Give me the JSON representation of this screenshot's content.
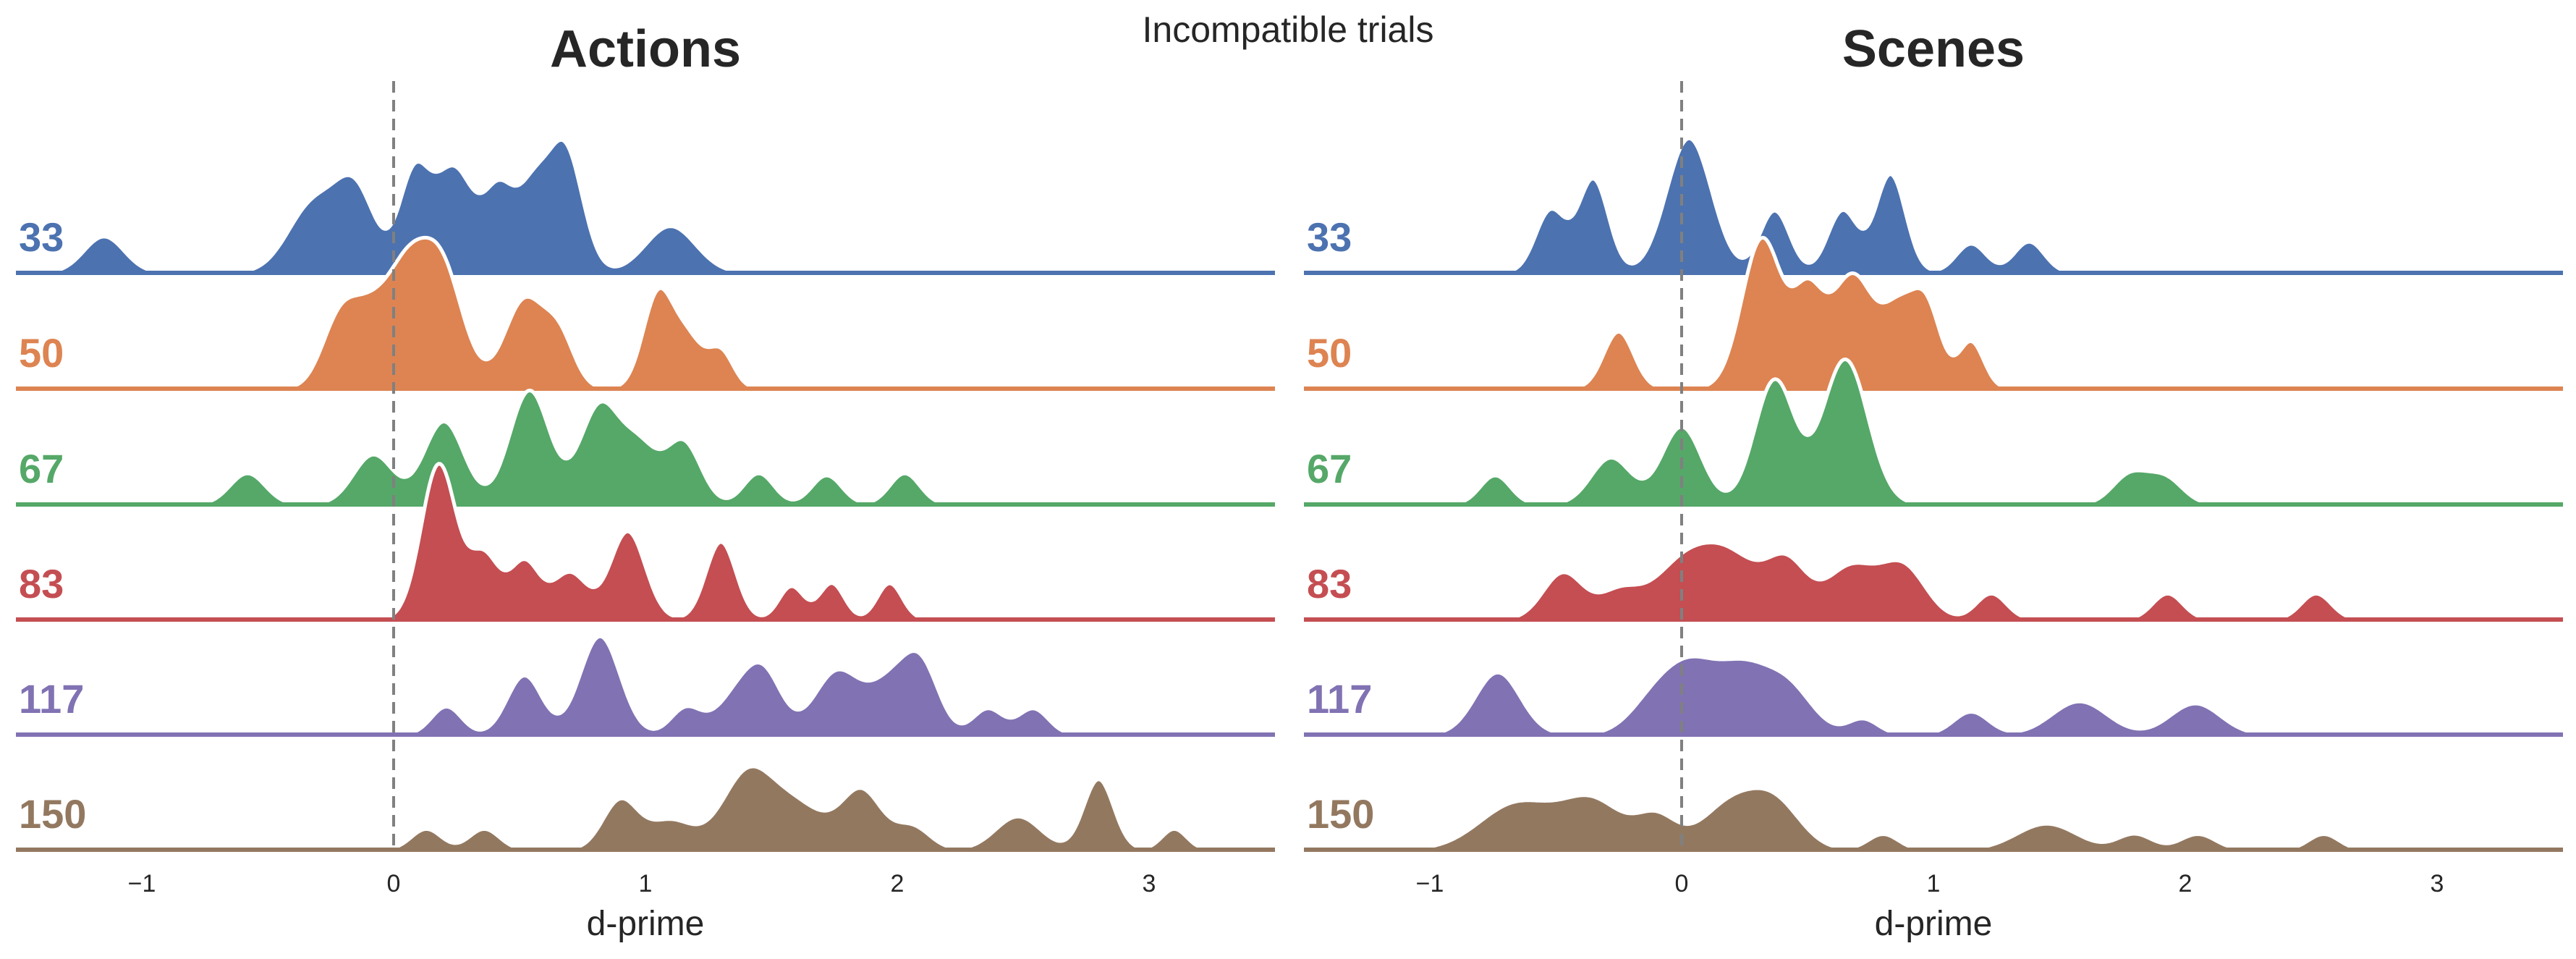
{
  "chart_data": {
    "type": "area",
    "suptitle": "Incompatible trials",
    "rows": [
      "33",
      "50",
      "67",
      "83",
      "117",
      "150"
    ],
    "colors": {
      "33": "#4c72b0",
      "50": "#dd8452",
      "67": "#55a868",
      "83": "#c44e52",
      "117": "#8172b3",
      "150": "#937860"
    },
    "reference_line": {
      "x": 0,
      "style": "dashed",
      "color": "#808080"
    },
    "xlim": [
      -1.5,
      3.5
    ],
    "xticks": [
      -1,
      0,
      1,
      2,
      3
    ],
    "xtick_labels": [
      "−1",
      "0",
      "1",
      "2",
      "3"
    ],
    "grid": false,
    "panels": [
      {
        "title": "Actions",
        "xlabel": "d-prime",
        "rows": [
          {
            "label": "33",
            "peaks": [
              [
                -1.15,
                0.08,
                0.35
              ],
              [
                -0.32,
                0.1,
                0.65
              ],
              [
                -0.15,
                0.08,
                0.75
              ],
              [
                0.08,
                0.06,
                0.9
              ],
              [
                0.24,
                0.08,
                1.0
              ],
              [
                0.42,
                0.06,
                0.75
              ],
              [
                0.55,
                0.06,
                0.7
              ],
              [
                0.68,
                0.07,
                1.2
              ],
              [
                1.1,
                0.1,
                0.45
              ]
            ]
          },
          {
            "label": "50",
            "peaks": [
              [
                -0.22,
                0.07,
                0.55
              ],
              [
                -0.08,
                0.09,
                0.75
              ],
              [
                0.05,
                0.07,
                0.65
              ],
              [
                0.18,
                0.09,
                1.25
              ],
              [
                0.52,
                0.08,
                0.85
              ],
              [
                0.66,
                0.06,
                0.45
              ],
              [
                1.05,
                0.06,
                0.9
              ],
              [
                1.17,
                0.06,
                0.45
              ],
              [
                1.3,
                0.05,
                0.35
              ]
            ]
          },
          {
            "label": "67",
            "peaks": [
              [
                -0.58,
                0.07,
                0.3
              ],
              [
                -0.08,
                0.08,
                0.48
              ],
              [
                0.2,
                0.08,
                0.8
              ],
              [
                0.54,
                0.08,
                1.1
              ],
              [
                0.82,
                0.08,
                0.95
              ],
              [
                0.98,
                0.07,
                0.5
              ],
              [
                1.15,
                0.07,
                0.6
              ],
              [
                1.45,
                0.06,
                0.3
              ],
              [
                1.72,
                0.06,
                0.28
              ],
              [
                2.03,
                0.06,
                0.3
              ]
            ]
          },
          {
            "label": "83",
            "peaks": [
              [
                0.18,
                0.07,
                1.5
              ],
              [
                0.36,
                0.06,
                0.6
              ],
              [
                0.52,
                0.06,
                0.55
              ],
              [
                0.7,
                0.07,
                0.45
              ],
              [
                0.93,
                0.07,
                0.85
              ],
              [
                1.3,
                0.06,
                0.75
              ],
              [
                1.58,
                0.05,
                0.32
              ],
              [
                1.74,
                0.05,
                0.35
              ],
              [
                1.97,
                0.05,
                0.35
              ]
            ]
          },
          {
            "label": "117",
            "peaks": [
              [
                0.21,
                0.06,
                0.27
              ],
              [
                0.52,
                0.07,
                0.57
              ],
              [
                0.82,
                0.08,
                0.95
              ],
              [
                1.16,
                0.06,
                0.25
              ],
              [
                1.38,
                0.09,
                0.42
              ],
              [
                1.48,
                0.07,
                0.42
              ],
              [
                1.76,
                0.09,
                0.6
              ],
              [
                1.98,
                0.09,
                0.5
              ],
              [
                2.1,
                0.07,
                0.55
              ],
              [
                2.36,
                0.06,
                0.25
              ],
              [
                2.54,
                0.06,
                0.25
              ]
            ]
          },
          {
            "label": "150",
            "peaks": [
              [
                0.13,
                0.06,
                0.2
              ],
              [
                0.36,
                0.06,
                0.2
              ],
              [
                0.9,
                0.07,
                0.47
              ],
              [
                1.1,
                0.09,
                0.28
              ],
              [
                1.4,
                0.1,
                0.68
              ],
              [
                1.6,
                0.12,
                0.42
              ],
              [
                1.86,
                0.08,
                0.55
              ],
              [
                2.06,
                0.07,
                0.22
              ],
              [
                2.48,
                0.09,
                0.32
              ],
              [
                2.8,
                0.06,
                0.68
              ],
              [
                3.1,
                0.05,
                0.2
              ]
            ]
          }
        ]
      },
      {
        "title": "Scenes",
        "xlabel": "d-prime",
        "rows": [
          {
            "label": "33",
            "peaks": [
              [
                -0.52,
                0.06,
                0.6
              ],
              [
                -0.35,
                0.06,
                0.9
              ],
              [
                0.03,
                0.09,
                1.3
              ],
              [
                0.37,
                0.06,
                0.6
              ],
              [
                0.64,
                0.06,
                0.6
              ],
              [
                0.83,
                0.06,
                0.95
              ],
              [
                1.15,
                0.06,
                0.28
              ],
              [
                1.38,
                0.06,
                0.3
              ]
            ]
          },
          {
            "label": "50",
            "peaks": [
              [
                -0.25,
                0.06,
                0.55
              ],
              [
                0.32,
                0.08,
                1.45
              ],
              [
                0.5,
                0.06,
                0.8
              ],
              [
                0.68,
                0.09,
                1.1
              ],
              [
                0.86,
                0.06,
                0.6
              ],
              [
                0.97,
                0.06,
                0.8
              ],
              [
                1.15,
                0.05,
                0.45
              ]
            ]
          },
          {
            "label": "67",
            "peaks": [
              [
                -0.74,
                0.06,
                0.28
              ],
              [
                -0.28,
                0.08,
                0.45
              ],
              [
                0.0,
                0.08,
                0.75
              ],
              [
                0.37,
                0.08,
                1.2
              ],
              [
                0.65,
                0.09,
                1.4
              ],
              [
                1.78,
                0.07,
                0.28
              ],
              [
                1.92,
                0.07,
                0.25
              ]
            ]
          },
          {
            "label": "83",
            "peaks": [
              [
                -0.47,
                0.08,
                0.45
              ],
              [
                -0.25,
                0.08,
                0.25
              ],
              [
                0.0,
                0.12,
                0.5
              ],
              [
                0.2,
                0.12,
                0.55
              ],
              [
                0.42,
                0.08,
                0.5
              ],
              [
                0.67,
                0.1,
                0.5
              ],
              [
                0.88,
                0.09,
                0.5
              ],
              [
                1.23,
                0.06,
                0.25
              ],
              [
                1.93,
                0.06,
                0.25
              ],
              [
                2.52,
                0.06,
                0.25
              ]
            ]
          },
          {
            "label": "117",
            "peaks": [
              [
                -0.73,
                0.09,
                0.6
              ],
              [
                -0.1,
                0.1,
                0.35
              ],
              [
                0.05,
                0.1,
                0.55
              ],
              [
                0.24,
                0.1,
                0.55
              ],
              [
                0.42,
                0.1,
                0.45
              ],
              [
                0.72,
                0.06,
                0.15
              ],
              [
                1.15,
                0.07,
                0.22
              ],
              [
                1.58,
                0.11,
                0.32
              ],
              [
                2.04,
                0.1,
                0.3
              ]
            ]
          },
          {
            "label": "150",
            "peaks": [
              [
                -0.65,
                0.15,
                0.45
              ],
              [
                -0.35,
                0.12,
                0.45
              ],
              [
                -0.1,
                0.08,
                0.3
              ],
              [
                0.2,
                0.12,
                0.45
              ],
              [
                0.38,
                0.1,
                0.38
              ],
              [
                0.8,
                0.06,
                0.15
              ],
              [
                1.45,
                0.12,
                0.25
              ],
              [
                1.8,
                0.07,
                0.15
              ],
              [
                2.05,
                0.07,
                0.15
              ],
              [
                2.55,
                0.06,
                0.15
              ]
            ]
          }
        ]
      }
    ]
  }
}
